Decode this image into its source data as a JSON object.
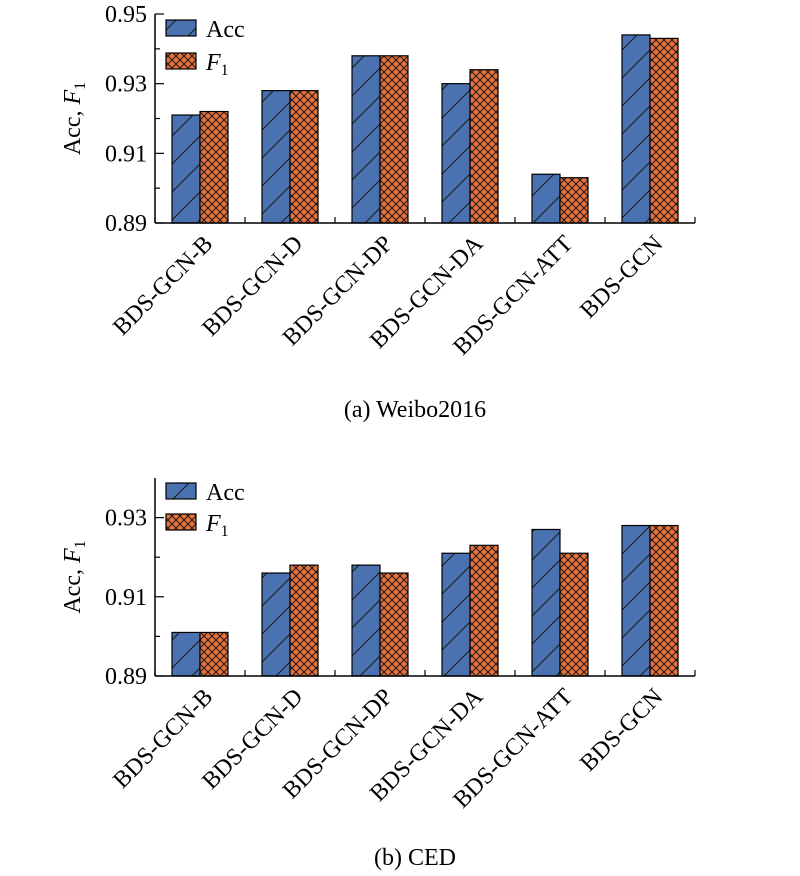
{
  "colors": {
    "acc": "#4a72b0",
    "f1": "#e8703a",
    "hatch": "#1a1a1a"
  },
  "legend": {
    "acc_label": "Acc",
    "f1_label_main": "F",
    "f1_label_sub": "1"
  },
  "ylabel_main": "Acc, ",
  "ylabel_f": "F",
  "ylabel_sub": "1",
  "chart_data": [
    {
      "type": "bar",
      "caption": "(a) Weibo2016",
      "categories": [
        "BDS-GCN-B",
        "BDS-GCN-D",
        "BDS-GCN-DP",
        "BDS-GCN-DA",
        "BDS-GCN-ATT",
        "BDS-GCN"
      ],
      "series": [
        {
          "name": "Acc",
          "values": [
            0.921,
            0.928,
            0.938,
            0.93,
            0.904,
            0.944
          ]
        },
        {
          "name": "F1",
          "values": [
            0.922,
            0.928,
            0.938,
            0.934,
            0.903,
            0.943
          ]
        }
      ],
      "ylim": [
        0.89,
        0.95
      ],
      "yticks": [
        "0.89",
        "0.91",
        "0.93",
        "0.95"
      ],
      "ytick_values": [
        0.89,
        0.91,
        0.93,
        0.95
      ]
    },
    {
      "type": "bar",
      "caption": "(b) CED",
      "categories": [
        "BDS-GCN-B",
        "BDS-GCN-D",
        "BDS-GCN-DP",
        "BDS-GCN-DA",
        "BDS-GCN-ATT",
        "BDS-GCN"
      ],
      "series": [
        {
          "name": "Acc",
          "values": [
            0.901,
            0.916,
            0.918,
            0.921,
            0.927,
            0.928
          ]
        },
        {
          "name": "F1",
          "values": [
            0.901,
            0.918,
            0.916,
            0.923,
            0.921,
            0.928
          ]
        }
      ],
      "ylim": [
        0.89,
        0.94
      ],
      "yticks": [
        "0.89",
        "0.91",
        "0.93"
      ],
      "ytick_values": [
        0.89,
        0.91,
        0.93
      ]
    }
  ]
}
